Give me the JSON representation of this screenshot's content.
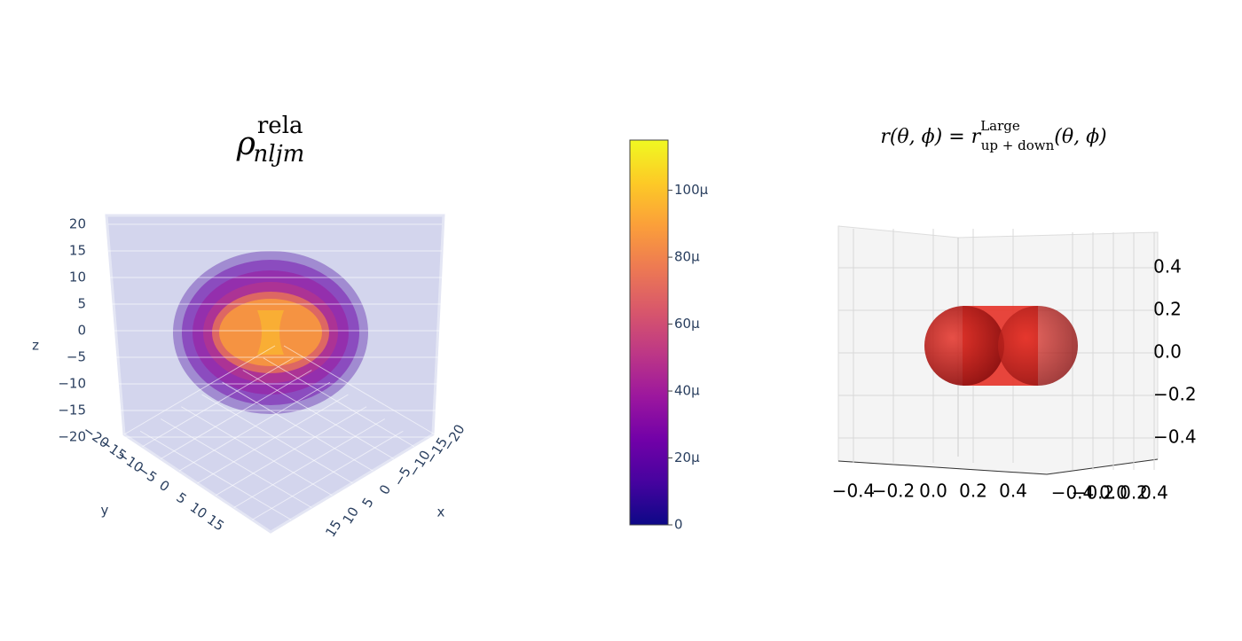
{
  "chart_data": [
    {
      "type": "volume",
      "title": {
        "base": "ρ",
        "sup": "rela",
        "sub": "nljm"
      },
      "xlabel": "x",
      "ylabel": "y",
      "zlabel": "z",
      "xticks": [
        {
          "value": -20,
          "label": "−20"
        },
        {
          "value": -15,
          "label": "−15"
        },
        {
          "value": -10,
          "label": "−10"
        },
        {
          "value": -5,
          "label": "−5"
        },
        0,
        5,
        10,
        15
      ],
      "yticks": [
        {
          "value": -20,
          "label": "−20"
        },
        {
          "value": -15,
          "label": "−15"
        },
        {
          "value": -10,
          "label": "−10"
        },
        {
          "value": -5,
          "label": "−5"
        },
        0,
        5,
        10,
        15
      ],
      "zticks": [
        20,
        15,
        10,
        5,
        0,
        {
          "value": -5,
          "label": "−5"
        },
        {
          "value": -10,
          "label": "−10"
        },
        {
          "value": -15,
          "label": "−15"
        },
        {
          "value": -20,
          "label": "−20"
        }
      ],
      "colorbar": {
        "ylim": [
          0,
          0.000115
        ],
        "yticks": [
          0,
          {
            "value": 2e-05,
            "label": "20μ"
          },
          {
            "value": 4e-05,
            "label": "40μ"
          },
          {
            "value": 6e-05,
            "label": "60μ"
          },
          {
            "value": 8e-05,
            "label": "80μ"
          },
          {
            "value": 0.0001,
            "label": "100μ"
          }
        ],
        "colorscale": [
          "#0d0887",
          "#46039f",
          "#7201a8",
          "#9c179e",
          "#bd3786",
          "#d8576b",
          "#ed7953",
          "#fb9f3a",
          "#fdca26",
          "#f0f921"
        ]
      }
    },
    {
      "type": "surface",
      "title": "r(θ, ϕ) = r",
      "title_sup": "Large",
      "title_sub": "up + down",
      "title_tail": "(θ, ϕ)",
      "color": "#e53228",
      "xticks": [
        {
          "value": -0.4,
          "label": "−0.4"
        },
        {
          "value": -0.2,
          "label": "−0.2"
        },
        {
          "value": 0,
          "label": "0.0"
        },
        0.2,
        0.4
      ],
      "yticks": [
        {
          "value": -0.4,
          "label": "−0.4"
        },
        {
          "value": -0.2,
          "label": "−0.2"
        },
        {
          "value": 0,
          "label": "0.0"
        },
        0.2,
        0.4
      ],
      "zticks": [
        0.4,
        0.2,
        {
          "value": 0,
          "label": "0.0"
        },
        {
          "value": -0.2,
          "label": "−0.2"
        },
        {
          "value": -0.4,
          "label": "−0.4"
        }
      ]
    }
  ]
}
